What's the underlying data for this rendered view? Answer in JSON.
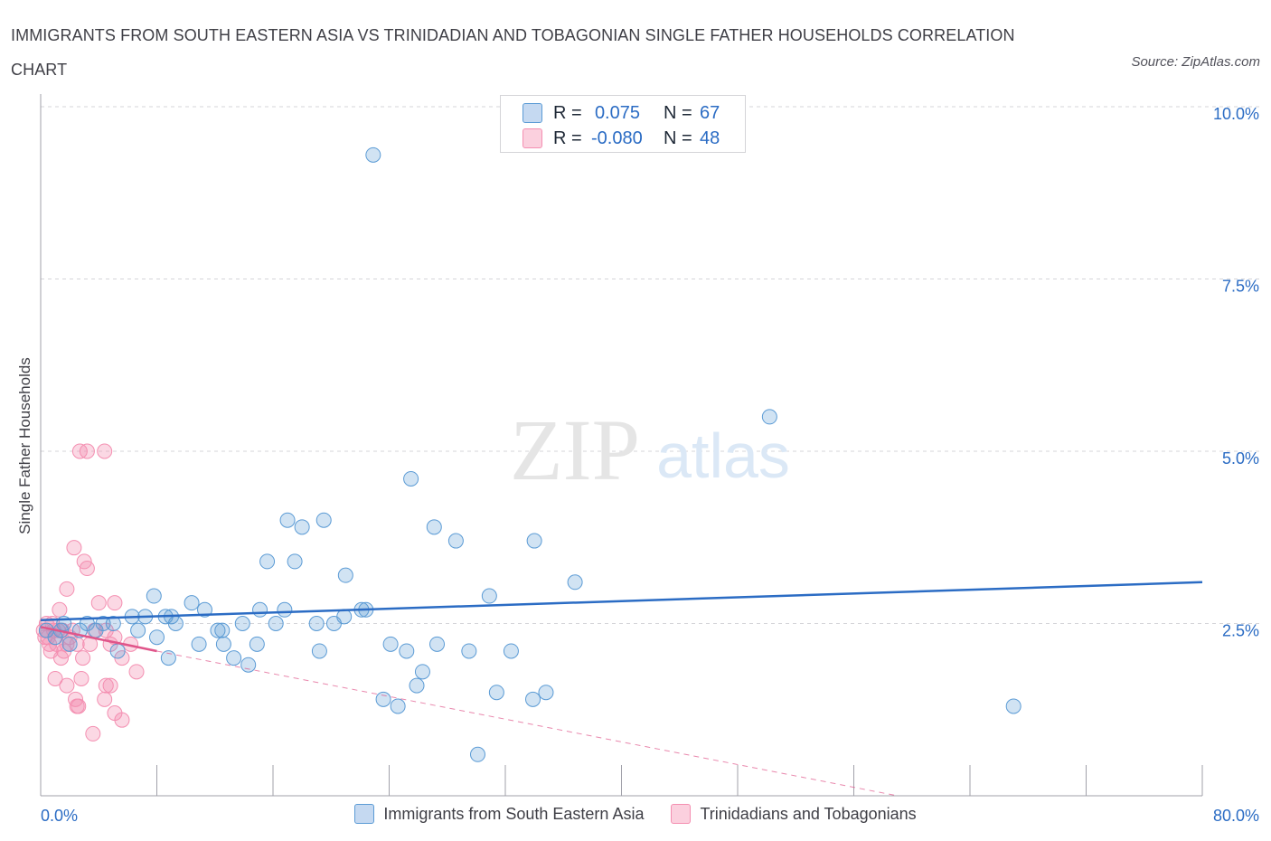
{
  "title": "IMMIGRANTS FROM SOUTH EASTERN ASIA VS TRINIDADIAN AND TOBAGONIAN SINGLE FATHER HOUSEHOLDS CORRELATION CHART",
  "source": "Source: ZipAtlas.com",
  "watermark": {
    "zip": "ZIP",
    "atlas": "atlas"
  },
  "legend": {
    "rows": [
      {
        "r_label": "R =",
        "r_value": "0.075",
        "n_label": "N =",
        "n_value": "67",
        "color": "#5b9bd5"
      },
      {
        "r_label": "R =",
        "r_value": "-0.080",
        "n_label": "N =",
        "n_value": "48",
        "color": "#f48fb1"
      }
    ]
  },
  "bottom_legend": [
    {
      "label": "Immigrants from South Eastern Asia",
      "color": "#5b9bd5"
    },
    {
      "label": "Trinidadians and Tobagonians",
      "color": "#f48fb1"
    }
  ],
  "chart_data": {
    "type": "scatter",
    "ylabel": "Single Father Households",
    "xlim": [
      0,
      80
    ],
    "ylim": [
      0,
      10
    ],
    "x_tick_labels": [
      {
        "value": 0,
        "label": "0.0%"
      },
      {
        "value": 80,
        "label": "80.0%"
      }
    ],
    "y_tick_labels": [
      {
        "value": 2.5,
        "label": "2.5%"
      },
      {
        "value": 5,
        "label": "5.0%"
      },
      {
        "value": 7.5,
        "label": "7.5%"
      },
      {
        "value": 10,
        "label": "10.0%"
      }
    ],
    "colors": {
      "blue": "#5b9bd5",
      "blue_line": "#2b6cc4",
      "pink": "#f48fb1",
      "pink_line": "#e0558a",
      "grid": "#d4d4d8",
      "tick_text": "#2b6cc4"
    },
    "grid": true,
    "series": [
      {
        "name": "Immigrants from South Eastern Asia",
        "color": "#5b9bd5",
        "points": [
          [
            22.9,
            9.3
          ],
          [
            50.2,
            5.5
          ],
          [
            25.5,
            4.6
          ],
          [
            17.0,
            4.0
          ],
          [
            19.5,
            4.0
          ],
          [
            18.0,
            3.9
          ],
          [
            27.1,
            3.9
          ],
          [
            28.6,
            3.7
          ],
          [
            34.0,
            3.7
          ],
          [
            15.6,
            3.4
          ],
          [
            17.5,
            3.4
          ],
          [
            21.0,
            3.2
          ],
          [
            36.8,
            3.1
          ],
          [
            30.9,
            2.9
          ],
          [
            7.8,
            2.9
          ],
          [
            10.4,
            2.8
          ],
          [
            11.3,
            2.7
          ],
          [
            15.1,
            2.7
          ],
          [
            16.8,
            2.7
          ],
          [
            22.4,
            2.7
          ],
          [
            22.1,
            2.7
          ],
          [
            6.3,
            2.6
          ],
          [
            7.2,
            2.6
          ],
          [
            8.6,
            2.6
          ],
          [
            9.0,
            2.6
          ],
          [
            20.9,
            2.6
          ],
          [
            13.9,
            2.5
          ],
          [
            16.2,
            2.5
          ],
          [
            19.0,
            2.5
          ],
          [
            20.2,
            2.5
          ],
          [
            3.2,
            2.5
          ],
          [
            4.3,
            2.5
          ],
          [
            5.0,
            2.5
          ],
          [
            9.3,
            2.5
          ],
          [
            1.4,
            2.4
          ],
          [
            2.7,
            2.4
          ],
          [
            3.8,
            2.4
          ],
          [
            6.7,
            2.4
          ],
          [
            12.2,
            2.4
          ],
          [
            12.5,
            2.4
          ],
          [
            8.0,
            2.3
          ],
          [
            10.9,
            2.2
          ],
          [
            14.9,
            2.2
          ],
          [
            24.1,
            2.2
          ],
          [
            27.3,
            2.2
          ],
          [
            12.6,
            2.2
          ],
          [
            19.2,
            2.1
          ],
          [
            25.2,
            2.1
          ],
          [
            29.5,
            2.1
          ],
          [
            32.4,
            2.1
          ],
          [
            5.3,
            2.1
          ],
          [
            8.8,
            2.0
          ],
          [
            13.3,
            2.0
          ],
          [
            14.3,
            1.9
          ],
          [
            26.3,
            1.8
          ],
          [
            25.9,
            1.6
          ],
          [
            34.8,
            1.5
          ],
          [
            31.4,
            1.5
          ],
          [
            33.9,
            1.4
          ],
          [
            23.6,
            1.4
          ],
          [
            24.6,
            1.3
          ],
          [
            67.0,
            1.3
          ],
          [
            30.1,
            0.6
          ],
          [
            0.4,
            2.4
          ],
          [
            1.0,
            2.3
          ],
          [
            2.0,
            2.2
          ],
          [
            1.6,
            2.5
          ]
        ]
      },
      {
        "name": "Trinidadians and Tobagonians",
        "color": "#f48fb1",
        "points": [
          [
            2.7,
            5.0
          ],
          [
            3.2,
            5.0
          ],
          [
            4.4,
            5.0
          ],
          [
            2.3,
            3.6
          ],
          [
            3.0,
            3.4
          ],
          [
            3.2,
            3.3
          ],
          [
            1.8,
            3.0
          ],
          [
            1.3,
            2.7
          ],
          [
            4.0,
            2.8
          ],
          [
            5.1,
            2.8
          ],
          [
            0.4,
            2.5
          ],
          [
            0.9,
            2.4
          ],
          [
            1.5,
            2.4
          ],
          [
            2.2,
            2.4
          ],
          [
            3.7,
            2.4
          ],
          [
            4.5,
            2.4
          ],
          [
            5.1,
            2.3
          ],
          [
            0.5,
            2.3
          ],
          [
            1.1,
            2.2
          ],
          [
            1.8,
            2.2
          ],
          [
            2.5,
            2.2
          ],
          [
            3.4,
            2.2
          ],
          [
            4.8,
            2.2
          ],
          [
            6.2,
            2.2
          ],
          [
            0.7,
            2.1
          ],
          [
            1.6,
            2.1
          ],
          [
            2.9,
            2.0
          ],
          [
            5.6,
            2.0
          ],
          [
            1.4,
            2.0
          ],
          [
            1.0,
            1.7
          ],
          [
            2.8,
            1.7
          ],
          [
            1.8,
            1.6
          ],
          [
            6.6,
            1.8
          ],
          [
            4.5,
            1.6
          ],
          [
            4.8,
            1.6
          ],
          [
            2.4,
            1.4
          ],
          [
            4.4,
            1.4
          ],
          [
            2.5,
            1.3
          ],
          [
            2.6,
            1.3
          ],
          [
            5.1,
            1.2
          ],
          [
            5.6,
            1.1
          ],
          [
            3.6,
            0.9
          ],
          [
            0.2,
            2.4
          ],
          [
            0.3,
            2.3
          ],
          [
            0.6,
            2.2
          ],
          [
            0.8,
            2.5
          ],
          [
            1.2,
            2.4
          ],
          [
            2.0,
            2.3
          ]
        ]
      }
    ],
    "trend_lines": [
      {
        "series": "Immigrants from South Eastern Asia",
        "x": [
          0,
          80
        ],
        "y": [
          2.55,
          3.1
        ],
        "style": "solid"
      },
      {
        "series": "Trinidadians and Tobagonians",
        "x": [
          0,
          8
        ],
        "y": [
          2.45,
          2.1
        ],
        "style": "solid"
      },
      {
        "series": "Trinidadians and Tobagonians",
        "x": [
          8,
          59
        ],
        "y": [
          2.1,
          0.0
        ],
        "style": "dashed"
      }
    ]
  }
}
